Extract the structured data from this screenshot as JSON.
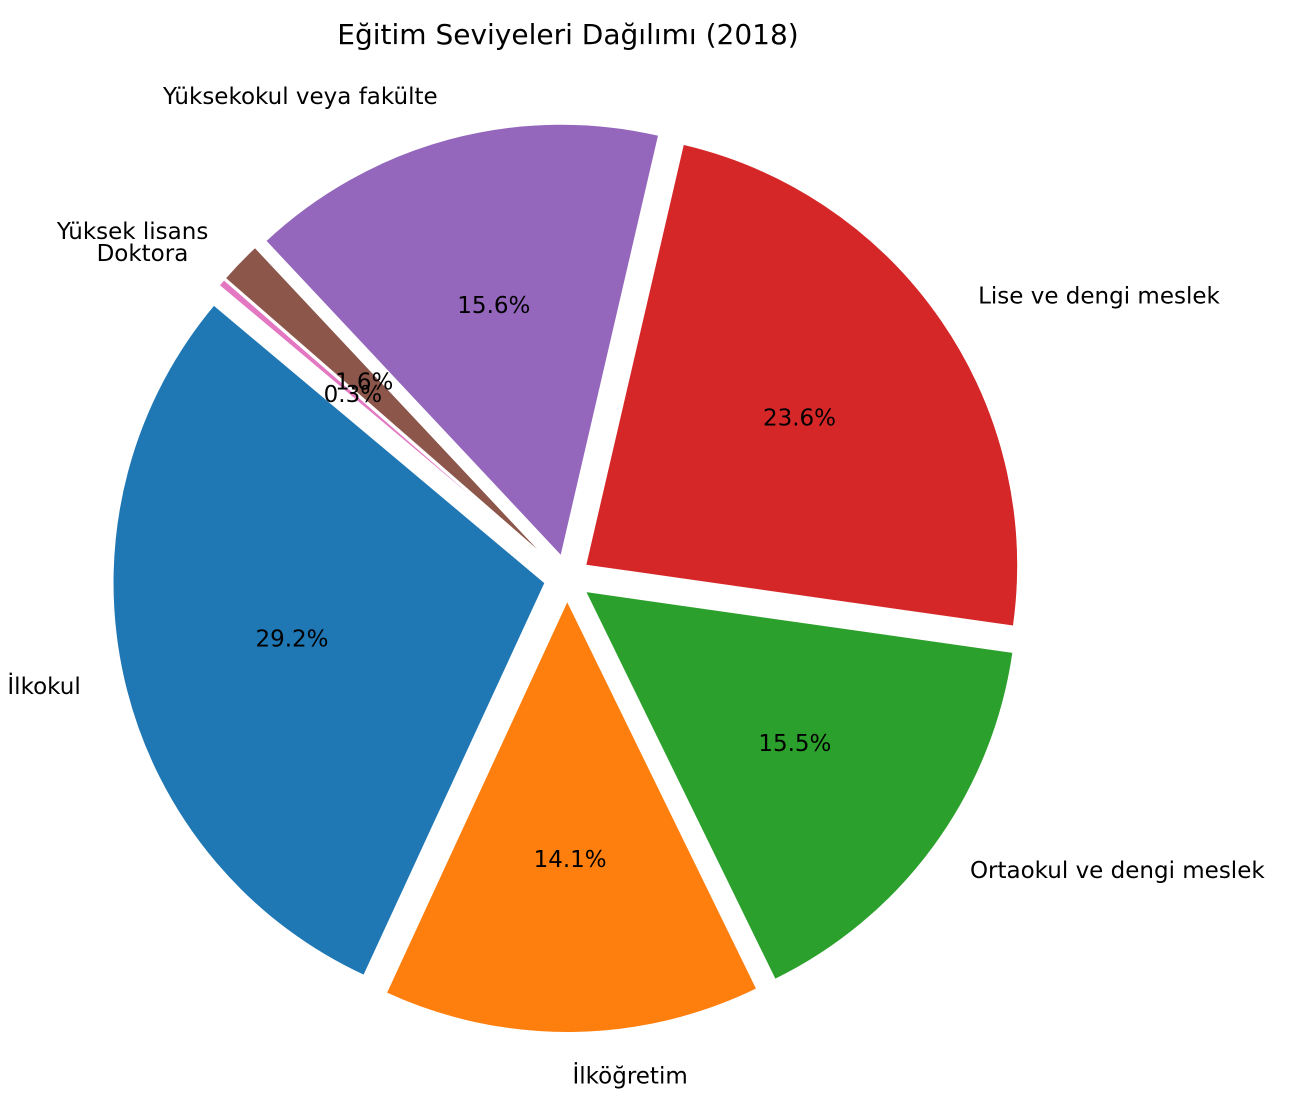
{
  "chart_data": {
    "type": "pie",
    "title": "Eğitim Seviyeleri Dağılımı (2018)",
    "categories": [
      "İlkokul",
      "İlköğretim",
      "Ortaokul ve dengi meslek",
      "Lise ve dengi meslek",
      "Yüksekokul veya fakülte",
      "Yüksek lisans",
      "Doktora"
    ],
    "values": [
      29.2,
      14.1,
      15.5,
      23.6,
      15.6,
      1.6,
      0.3
    ],
    "value_labels": [
      "29.2%",
      "14.1%",
      "15.5%",
      "23.6%",
      "15.6%",
      "1.6%",
      "0.3%"
    ],
    "colors": [
      "#1f77b4",
      "#ff7f0e",
      "#2ca02c",
      "#d62728",
      "#9467bd",
      "#8c564b",
      "#e377c2"
    ],
    "start_angle_deg": 140,
    "direction": "counterclockwise",
    "exploded": true,
    "legend": "none"
  }
}
